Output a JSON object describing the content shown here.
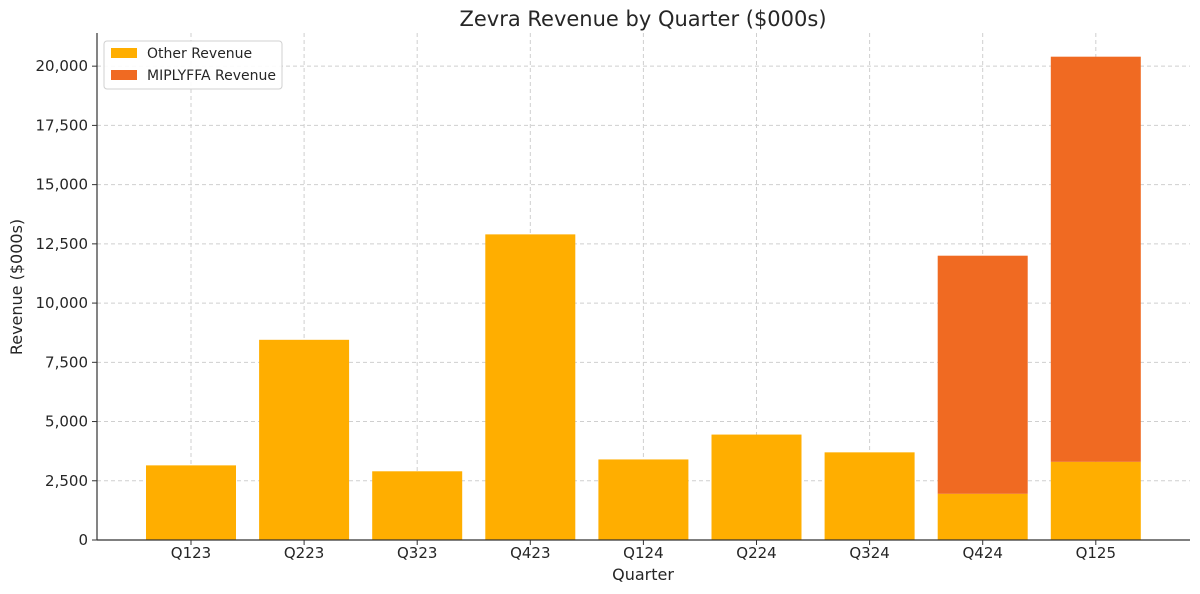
{
  "chart_data": {
    "type": "bar",
    "stacked": true,
    "title": "Zevra Revenue by Quarter ($000s)",
    "xlabel": "Quarter",
    "ylabel": "Revenue ($000s)",
    "categories": [
      "Q123",
      "Q223",
      "Q323",
      "Q423",
      "Q124",
      "Q224",
      "Q324",
      "Q424",
      "Q125"
    ],
    "series": [
      {
        "name": "Other Revenue",
        "color": "#FFAE00",
        "values": [
          3150,
          8450,
          2900,
          12900,
          3400,
          4450,
          3700,
          1950,
          3300
        ]
      },
      {
        "name": "MIPLYFFA Revenue",
        "color": "#F06A22",
        "values": [
          0,
          0,
          0,
          0,
          0,
          0,
          0,
          10050,
          17100
        ]
      }
    ],
    "ylim": [
      0,
      21400
    ],
    "yticks": [
      0,
      2500,
      5000,
      7500,
      10000,
      12500,
      15000,
      17500,
      20000
    ],
    "ytick_labels": [
      "0",
      "2,500",
      "5,000",
      "7,500",
      "10,000",
      "12,500",
      "15,000",
      "17,500",
      "20,000"
    ],
    "grid": true,
    "legend_position": "top-left"
  }
}
